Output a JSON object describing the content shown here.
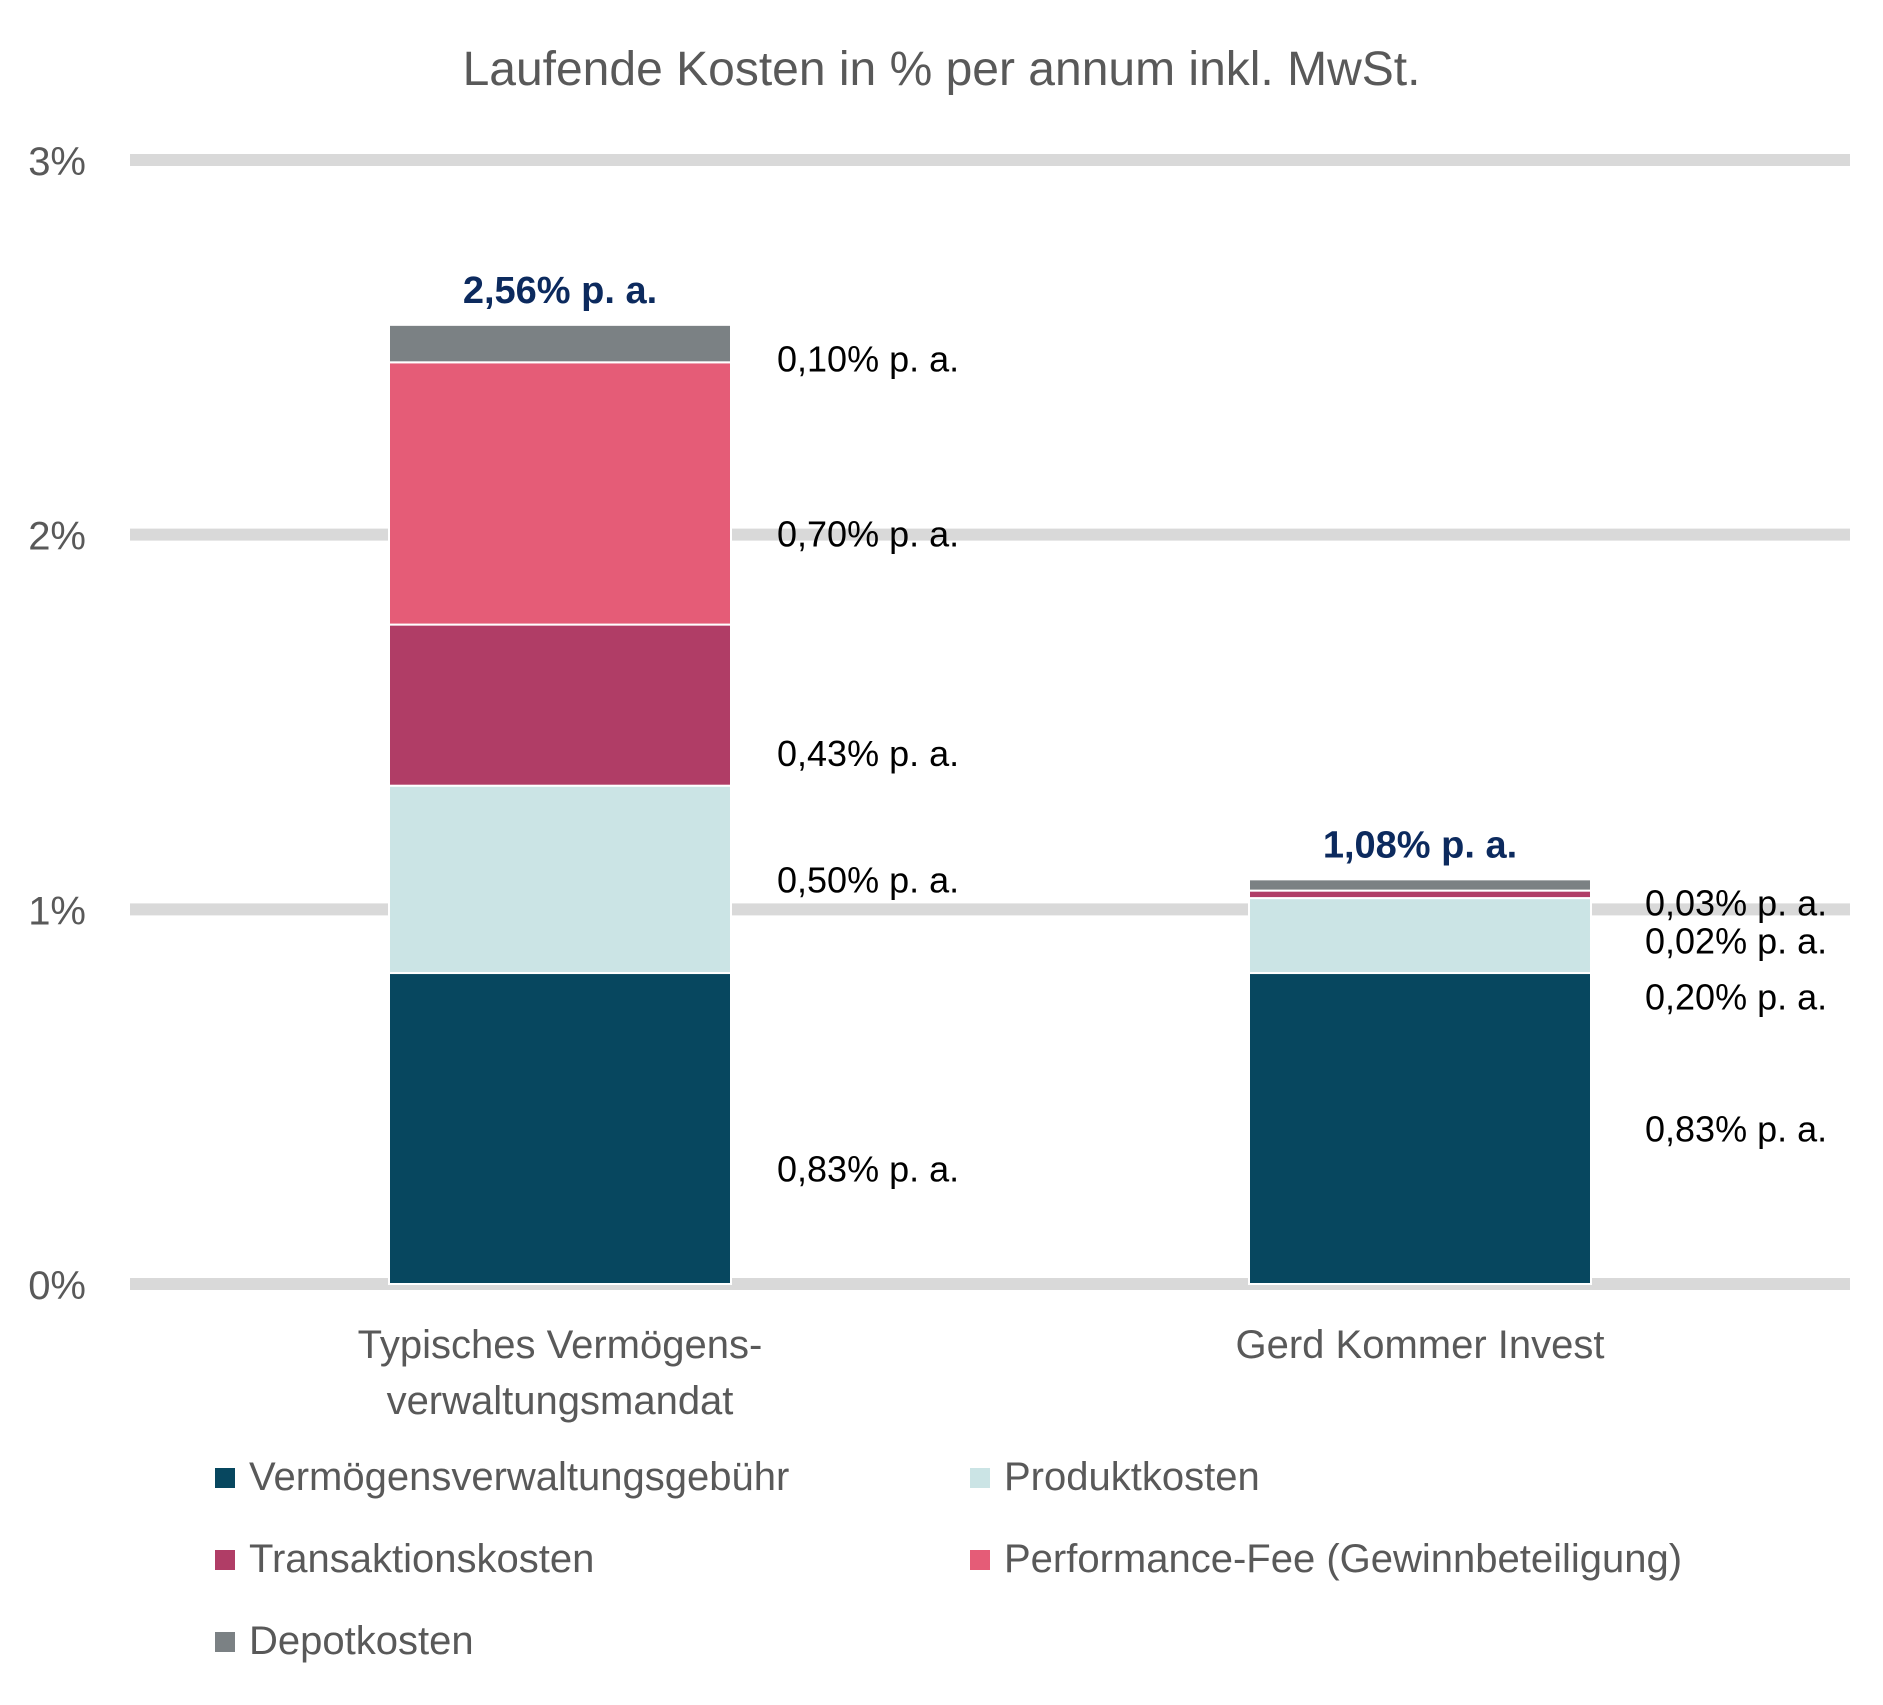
{
  "chart_data": {
    "type": "bar",
    "stacked": true,
    "title": "Laufende Kosten in % per annum inkl. MwSt.",
    "xlabel": "",
    "ylabel": "",
    "ylim": [
      0,
      3
    ],
    "yticks": [
      0,
      1,
      2,
      3
    ],
    "ytick_labels": [
      "0%",
      "1%",
      "2%",
      "3%"
    ],
    "grid": true,
    "legend_position": "bottom",
    "categories": [
      [
        "Typisches Vermögens-",
        "verwaltungsmandat"
      ],
      [
        "Gerd Kommer Invest"
      ]
    ],
    "totals": [
      2.56,
      1.08
    ],
    "total_labels": [
      "2,56% p. a.",
      "1,08% p. a."
    ],
    "series": [
      {
        "name": "Vermögensverwaltungsgebühr",
        "color": "#07475f",
        "values": [
          0.83,
          0.83
        ],
        "labels": [
          "0,83% p. a.",
          "0,83% p. a."
        ]
      },
      {
        "name": "Produktkosten",
        "color": "#cbe4e5",
        "values": [
          0.5,
          0.2
        ],
        "labels": [
          "0,50% p. a.",
          "0,20% p. a."
        ]
      },
      {
        "name": "Transaktionskosten",
        "color": "#b03d66",
        "values": [
          0.43,
          0.02
        ],
        "labels": [
          "0,43% p. a.",
          "0,02% p. a."
        ]
      },
      {
        "name": "Performance-Fee (Gewinnbeteiligung)",
        "color": "#e55c77",
        "values": [
          0.7,
          0
        ],
        "labels": [
          "0,70% p. a.",
          ""
        ]
      },
      {
        "name": "Depotkosten",
        "color": "#7b8184",
        "values": [
          0.1,
          0.03
        ],
        "labels": [
          "0,10% p. a.",
          "0,03% p. a."
        ]
      }
    ],
    "colors": {
      "grid": "#d9d9d9",
      "total_label": "#0c2a5e",
      "axis_text": "#595959",
      "value_label": "#000000"
    }
  }
}
